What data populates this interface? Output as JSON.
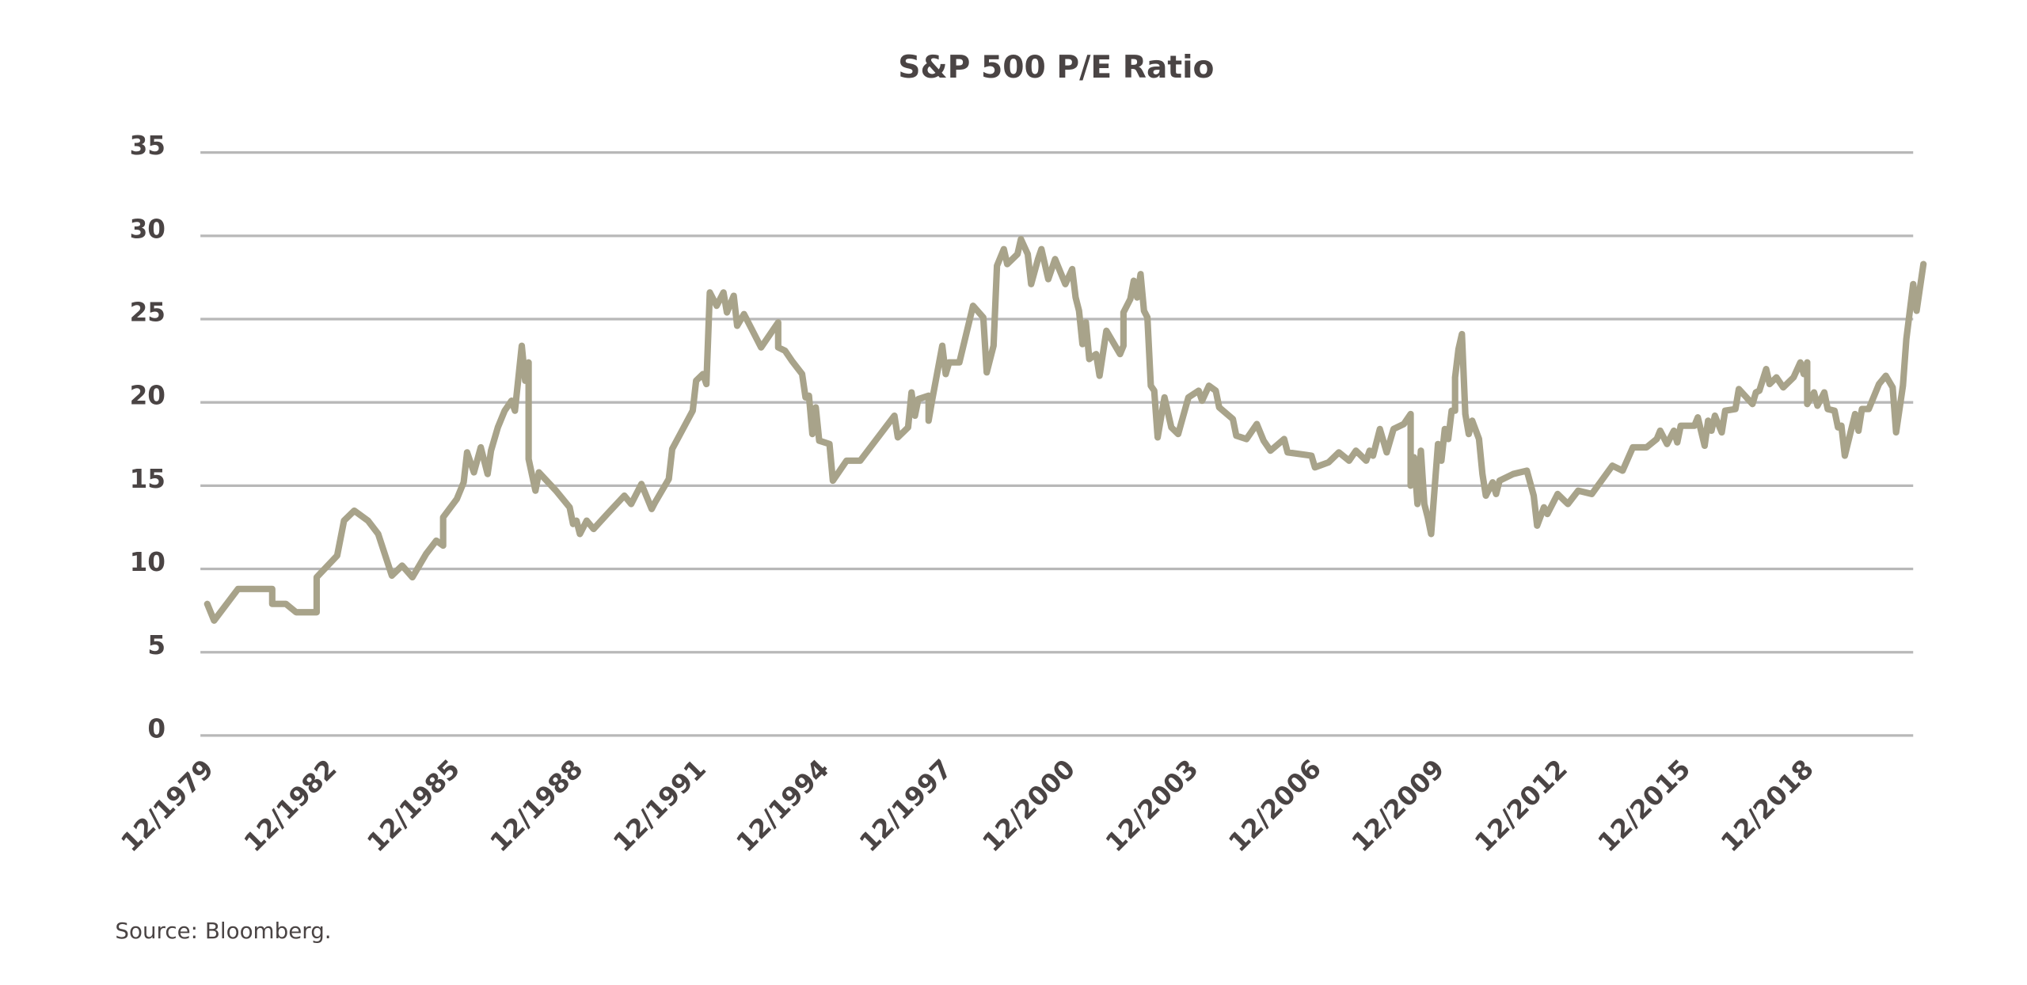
{
  "chart_data": {
    "type": "line",
    "title": "S&P 500 P/E Ratio",
    "source": "Source: Bloomberg.",
    "color": "#a8a38a",
    "grid": true,
    "ylim": [
      0,
      35
    ],
    "yticks": [
      0,
      5,
      10,
      15,
      20,
      25,
      30,
      35
    ],
    "xlim": [
      "1979-10",
      "2021-07"
    ],
    "xticks": [
      {
        "value": "1979-12",
        "label": "12/1979"
      },
      {
        "value": "1982-12",
        "label": "12/1982"
      },
      {
        "value": "1985-12",
        "label": "12/1985"
      },
      {
        "value": "1988-12",
        "label": "12/1988"
      },
      {
        "value": "1991-12",
        "label": "12/1991"
      },
      {
        "value": "1994-12",
        "label": "12/1994"
      },
      {
        "value": "1997-12",
        "label": "12/1997"
      },
      {
        "value": "2000-12",
        "label": "12/2000"
      },
      {
        "value": "2003-12",
        "label": "12/2003"
      },
      {
        "value": "2006-12",
        "label": "12/2006"
      },
      {
        "value": "2009-12",
        "label": "12/2009"
      },
      {
        "value": "2012-12",
        "label": "12/2012"
      },
      {
        "value": "2015-12",
        "label": "12/2015"
      },
      {
        "value": "2018-12",
        "label": "12/2018"
      }
    ],
    "x": [
      "1979-12",
      "1980-02",
      "1980-09",
      "1981-07",
      "1981-07",
      "1981-11",
      "1982-02",
      "1982-08",
      "1982-08",
      "1983-02",
      "1983-04",
      "1983-07",
      "1983-11",
      "1984-02",
      "1984-06",
      "1984-09",
      "1984-12",
      "1985-04",
      "1985-07",
      "1985-09",
      "1985-09",
      "1986-01",
      "1986-03",
      "1986-04",
      "1986-06",
      "1986-08",
      "1986-10",
      "1986-11",
      "1987-01",
      "1987-03",
      "1987-05",
      "1987-06",
      "1987-08",
      "1987-09",
      "1987-10",
      "1987-10",
      "1987-12",
      "1988-01",
      "1988-06",
      "1988-10",
      "1988-11",
      "1988-12",
      "1989-01",
      "1989-03",
      "1989-05",
      "1989-09",
      "1990-02",
      "1990-04",
      "1990-07",
      "1990-10",
      "1990-11",
      "1991-03",
      "1991-04",
      "1991-10",
      "1991-11",
      "1992-01",
      "1992-02",
      "1992-03",
      "1992-05",
      "1992-07",
      "1992-08",
      "1992-10",
      "1992-11",
      "1993-01",
      "1993-06",
      "1993-11",
      "1993-11",
      "1994-01",
      "1994-03",
      "1994-06",
      "1994-07",
      "1994-08",
      "1994-09",
      "1994-10",
      "1994-11",
      "1995-02",
      "1995-03",
      "1995-07",
      "1995-11",
      "1996-09",
      "1996-10",
      "1997-01",
      "1997-02",
      "1997-03",
      "1997-04",
      "1997-07",
      "1997-07",
      "1997-08",
      "1997-11",
      "1997-12",
      "1998-01",
      "1998-04",
      "1998-08",
      "1998-11",
      "1998-12",
      "1999-02",
      "1999-03",
      "1999-05",
      "1999-06",
      "1999-09",
      "1999-10",
      "1999-12",
      "2000-01",
      "2000-03",
      "2000-04",
      "2000-06",
      "2000-08",
      "2000-11",
      "2001-01",
      "2001-02",
      "2001-03",
      "2001-04",
      "2001-05",
      "2001-06",
      "2001-08",
      "2001-09",
      "2001-11",
      "2002-03",
      "2002-04",
      "2002-04",
      "2002-06",
      "2002-07",
      "2002-08",
      "2002-09",
      "2002-10",
      "2002-11",
      "2002-12",
      "2003-01",
      "2003-02",
      "2003-04",
      "2003-06",
      "2003-08",
      "2003-11",
      "2004-02",
      "2004-03",
      "2004-05",
      "2004-07",
      "2004-08",
      "2004-12",
      "2005-01",
      "2005-04",
      "2005-07",
      "2005-09",
      "2005-11",
      "2006-03",
      "2006-04",
      "2006-11",
      "2006-12",
      "2007-04",
      "2007-07",
      "2007-10",
      "2007-12",
      "2008-03",
      "2008-04",
      "2008-05",
      "2008-07",
      "2008-09",
      "2008-11",
      "2009-02",
      "2009-04",
      "2009-04",
      "2009-05",
      "2009-06",
      "2009-07",
      "2009-08",
      "2009-09",
      "2009-10",
      "2009-12",
      "2010-01",
      "2010-02",
      "2010-03",
      "2010-04",
      "2010-05",
      "2010-05",
      "2010-06",
      "2010-07",
      "2010-08",
      "2010-09",
      "2010-10",
      "2010-12",
      "2011-01",
      "2011-02",
      "2011-04",
      "2011-05",
      "2011-06",
      "2011-10",
      "2012-02",
      "2012-04",
      "2012-05",
      "2012-07",
      "2012-08",
      "2012-11",
      "2013-02",
      "2013-05",
      "2013-09",
      "2014-03",
      "2014-06",
      "2014-09",
      "2015-01",
      "2015-04",
      "2015-05",
      "2015-07",
      "2015-09",
      "2015-10",
      "2015-11",
      "2016-03",
      "2016-04",
      "2016-06",
      "2016-07",
      "2016-08",
      "2016-09",
      "2016-11",
      "2016-12",
      "2017-03",
      "2017-04",
      "2017-08",
      "2017-09",
      "2017-10",
      "2017-12",
      "2018-01",
      "2018-03",
      "2018-05",
      "2018-08",
      "2018-10",
      "2018-11",
      "2018-12",
      "2018-12",
      "2019-02",
      "2019-03",
      "2019-05",
      "2019-06",
      "2019-08",
      "2019-09",
      "2019-10",
      "2019-11",
      "2020-02",
      "2020-03",
      "2020-04",
      "2020-06",
      "2020-09",
      "2020-11",
      "2021-01",
      "2021-02",
      "2021-03",
      "2021-04",
      "2021-05",
      "2021-07",
      "2021-08",
      "2021-10"
    ],
    "values": [
      7.9,
      6.9,
      8.8,
      8.8,
      7.9,
      7.9,
      7.4,
      7.4,
      9.5,
      10.8,
      12.9,
      13.5,
      12.9,
      12.1,
      9.6,
      10.2,
      9.5,
      10.9,
      11.7,
      11.4,
      13.1,
      14.2,
      15.2,
      17,
      15.8,
      17.3,
      15.7,
      17.1,
      18.5,
      19.5,
      20.1,
      19.5,
      23.4,
      21.3,
      22.4,
      16.6,
      14.7,
      15.8,
      14.7,
      13.7,
      12.7,
      12.9,
      12.1,
      12.9,
      12.4,
      13.3,
      14.4,
      13.9,
      15.1,
      13.6,
      14.0,
      15.4,
      17.2,
      19.5,
      21.3,
      21.7,
      21.1,
      26.6,
      25.8,
      26.6,
      25.4,
      26.4,
      24.6,
      25.3,
      23.3,
      24.8,
      23.3,
      23.1,
      22.5,
      21.7,
      20.3,
      20.4,
      18.1,
      19.7,
      17.7,
      17.5,
      15.3,
      16.5,
      16.5,
      19.2,
      17.9,
      18.5,
      20.6,
      19.2,
      20.2,
      20.4,
      18.9,
      20.1,
      23.4,
      21.7,
      22.4,
      22.4,
      25.8,
      25.1,
      21.8,
      23.4,
      28.2,
      29.2,
      28.3,
      28.9,
      29.8,
      28.9,
      27.1,
      28.6,
      29.2,
      27.4,
      28.6,
      27.1,
      28.0,
      26.3,
      25.5,
      23.5,
      24.8,
      22.6,
      22.9,
      21.6,
      24.3,
      22.9,
      23.4,
      25.4,
      26.2,
      27.3,
      26.3,
      27.7,
      25.5,
      25.1,
      21.0,
      20.7,
      17.9,
      20.3,
      18.5,
      18.1,
      20.3,
      20.7,
      20.1,
      21.0,
      20.7,
      19.7,
      19.0,
      18.0,
      17.8,
      18.7,
      17.7,
      17.1,
      17.8,
      17.0,
      16.8,
      16.1,
      16.4,
      17.0,
      16.5,
      17.1,
      16.5,
      17.1,
      16.8,
      18.4,
      17.0,
      18.4,
      18.7,
      19.3,
      15.0,
      16.7,
      13.9,
      17.1,
      13.9,
      13.1,
      12.1,
      17.5,
      16.5,
      18.4,
      17.8,
      19.5,
      19.5,
      21.5,
      23.2,
      24.1,
      19.3,
      18.1,
      18.9,
      17.8,
      15.7,
      14.4,
      15.2,
      14.5,
      15.3,
      15.7,
      15.9,
      14.4,
      12.6,
      13.7,
      13.3,
      14.5,
      13.9,
      14.7,
      14.5,
      16.2,
      15.9,
      17.3,
      17.3,
      17.8,
      18.3,
      17.5,
      18.3,
      17.6,
      18.6,
      18.6,
      19.1,
      17.4,
      18.9,
      18.3,
      19.2,
      18.2,
      19.5,
      19.6,
      20.8,
      19.9,
      20.6,
      20.7,
      22.0,
      21.1,
      21.5,
      20.9,
      21.5,
      22.4,
      21.7,
      22.4,
      19.9,
      20.6,
      19.8,
      20.6,
      19.6,
      19.5,
      18.5,
      18.6,
      16.8,
      19.3,
      18.3,
      19.6,
      19.6,
      21.1,
      21.6,
      20.9,
      18.2,
      19.6,
      21.0,
      23.8,
      27.1,
      25.5,
      28.3
    ]
  }
}
